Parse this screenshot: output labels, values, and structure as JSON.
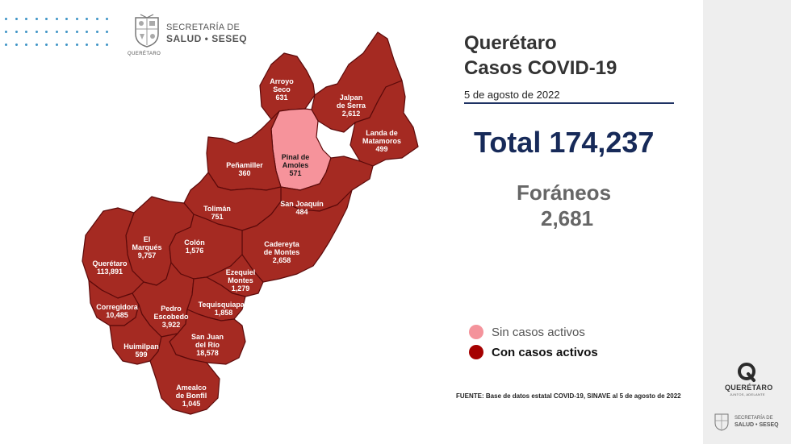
{
  "header": {
    "org_line1": "SECRETARÍA DE",
    "org_line2": "SALUD • SESEQ",
    "crest_caption": "QUERÉTARO"
  },
  "title": {
    "line1": "Querétaro",
    "line2": "Casos COVID-19",
    "date": "5 de agosto de 2022"
  },
  "total": "Total 174,237",
  "foraneos": {
    "label": "Foráneos",
    "value": "2,681"
  },
  "legend": {
    "inactive": {
      "label": "Sin casos activos",
      "color": "#f4939b"
    },
    "active": {
      "label": "Con casos activos",
      "color": "#a50000"
    }
  },
  "source": "FUENTE: Base de datos estatal COVID-19, SINAVE al 5 de agosto de 2022",
  "footer": {
    "logo_text": "QUERÉTARO",
    "logo_tagline": "JUNTOS, ADELANTE",
    "org_line1": "SECRETARÍA DE",
    "org_line2": "SALUD • SESEQ"
  },
  "map": {
    "fill_active": "#a52a22",
    "fill_inactive": "#f6939b",
    "municipalities": [
      {
        "id": "arroyo-seco",
        "name": "Arroyo\nSeco",
        "cases": "631",
        "active": true
      },
      {
        "id": "jalpan",
        "name": "Jalpan\nde Serra",
        "cases": "2,612",
        "active": true
      },
      {
        "id": "landa",
        "name": "Landa de\nMatamoros",
        "cases": "499",
        "active": true
      },
      {
        "id": "pinal",
        "name": "Pinal de\nAmoles",
        "cases": "571",
        "active": false
      },
      {
        "id": "penamiller",
        "name": "Peñamiller",
        "cases": "360",
        "active": true
      },
      {
        "id": "san-joaquin",
        "name": "San Joaquín",
        "cases": "484",
        "active": true
      },
      {
        "id": "toliman",
        "name": "Tolimán",
        "cases": "751",
        "active": true
      },
      {
        "id": "el-marques",
        "name": "El\nMarqués",
        "cases": "9,757",
        "active": true
      },
      {
        "id": "colon",
        "name": "Colón",
        "cases": "1,576",
        "active": true
      },
      {
        "id": "cadereyta",
        "name": "Cadereyta\nde Montes",
        "cases": "2,658",
        "active": true
      },
      {
        "id": "queretaro",
        "name": "Querétaro",
        "cases": "113,891",
        "active": true
      },
      {
        "id": "ezequiel-montes",
        "name": "Ezequiel\nMontes",
        "cases": "1,279",
        "active": true
      },
      {
        "id": "corregidora",
        "name": "Corregidora",
        "cases": "10,485",
        "active": true
      },
      {
        "id": "pedro-escobedo",
        "name": "Pedro\nEscobedo",
        "cases": "3,922",
        "active": true
      },
      {
        "id": "tequisquiapan",
        "name": "Tequisquiapan",
        "cases": "1,858",
        "active": true
      },
      {
        "id": "huimilpan",
        "name": "Huimilpan",
        "cases": "599",
        "active": true
      },
      {
        "id": "san-juan",
        "name": "San Juan\ndel Río",
        "cases": "18,578",
        "active": true
      },
      {
        "id": "amealco",
        "name": "Amealco\nde Bonfil",
        "cases": "1,045",
        "active": true
      }
    ]
  }
}
